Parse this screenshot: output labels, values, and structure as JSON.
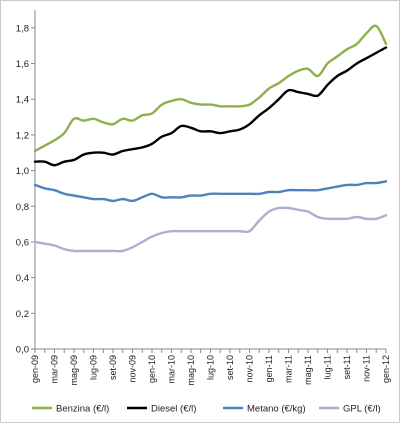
{
  "chart_data": {
    "type": "line",
    "x": [
      "gen-09",
      "feb-09",
      "mar-09",
      "apr-09",
      "mag-09",
      "giu-09",
      "lug-09",
      "ago-09",
      "set-09",
      "ott-09",
      "nov-09",
      "dic-09",
      "gen-10",
      "feb-10",
      "mar-10",
      "apr-10",
      "mag-10",
      "giu-10",
      "lug-10",
      "ago-10",
      "set-10",
      "ott-10",
      "nov-10",
      "dic-10",
      "gen-11",
      "feb-11",
      "mar-11",
      "apr-11",
      "mag-11",
      "giu-11",
      "lug-11",
      "ago-11",
      "set-11",
      "ott-11",
      "nov-11",
      "dic-11",
      "gen-12"
    ],
    "xtick_labels": [
      "gen-09",
      "mar-09",
      "mag-09",
      "lug-09",
      "set-09",
      "nov-09",
      "gen-10",
      "mar-10",
      "mag-10",
      "lug-10",
      "set-10",
      "nov-10",
      "gen-11",
      "mar-11",
      "mag-11",
      "lug-11",
      "set-11",
      "nov-11",
      "gen-12"
    ],
    "ylim": [
      0,
      1.9
    ],
    "yticks": [
      "0,0",
      "0,2",
      "0,4",
      "0,6",
      "0,8",
      "1,0",
      "1,2",
      "1,4",
      "1,6",
      "1,8"
    ],
    "ytick_values": [
      0,
      0.2,
      0.4,
      0.6,
      0.8,
      1.0,
      1.2,
      1.4,
      1.6,
      1.8
    ],
    "series": [
      {
        "name": "Benzina (€/l)",
        "color": "#8db04b",
        "values": [
          1.11,
          1.14,
          1.17,
          1.21,
          1.29,
          1.28,
          1.29,
          1.27,
          1.26,
          1.29,
          1.28,
          1.31,
          1.32,
          1.37,
          1.39,
          1.4,
          1.38,
          1.37,
          1.37,
          1.36,
          1.36,
          1.36,
          1.37,
          1.41,
          1.46,
          1.49,
          1.53,
          1.56,
          1.57,
          1.53,
          1.6,
          1.64,
          1.68,
          1.71,
          1.77,
          1.81,
          1.71
        ]
      },
      {
        "name": "Diesel (€/l)",
        "color": "#000000",
        "values": [
          1.05,
          1.05,
          1.03,
          1.05,
          1.06,
          1.09,
          1.1,
          1.1,
          1.09,
          1.11,
          1.12,
          1.13,
          1.15,
          1.19,
          1.21,
          1.25,
          1.24,
          1.22,
          1.22,
          1.21,
          1.22,
          1.23,
          1.26,
          1.31,
          1.35,
          1.4,
          1.45,
          1.44,
          1.43,
          1.42,
          1.48,
          1.53,
          1.56,
          1.6,
          1.63,
          1.66,
          1.69
        ]
      },
      {
        "name": "Metano (€/kg)",
        "color": "#4f81bd",
        "values": [
          0.92,
          0.9,
          0.89,
          0.87,
          0.86,
          0.85,
          0.84,
          0.84,
          0.83,
          0.84,
          0.83,
          0.85,
          0.87,
          0.85,
          0.85,
          0.85,
          0.86,
          0.86,
          0.87,
          0.87,
          0.87,
          0.87,
          0.87,
          0.87,
          0.88,
          0.88,
          0.89,
          0.89,
          0.89,
          0.89,
          0.9,
          0.91,
          0.92,
          0.92,
          0.93,
          0.93,
          0.94
        ]
      },
      {
        "name": "GPL (€/l)",
        "color": "#b8a8d2",
        "values": [
          0.6,
          0.59,
          0.58,
          0.56,
          0.55,
          0.55,
          0.55,
          0.55,
          0.55,
          0.55,
          0.57,
          0.6,
          0.63,
          0.65,
          0.66,
          0.66,
          0.66,
          0.66,
          0.66,
          0.66,
          0.66,
          0.66,
          0.66,
          0.72,
          0.77,
          0.79,
          0.79,
          0.78,
          0.77,
          0.74,
          0.73,
          0.73,
          0.73,
          0.74,
          0.73,
          0.73,
          0.75
        ]
      }
    ],
    "grid": false,
    "legend_position": "bottom"
  }
}
